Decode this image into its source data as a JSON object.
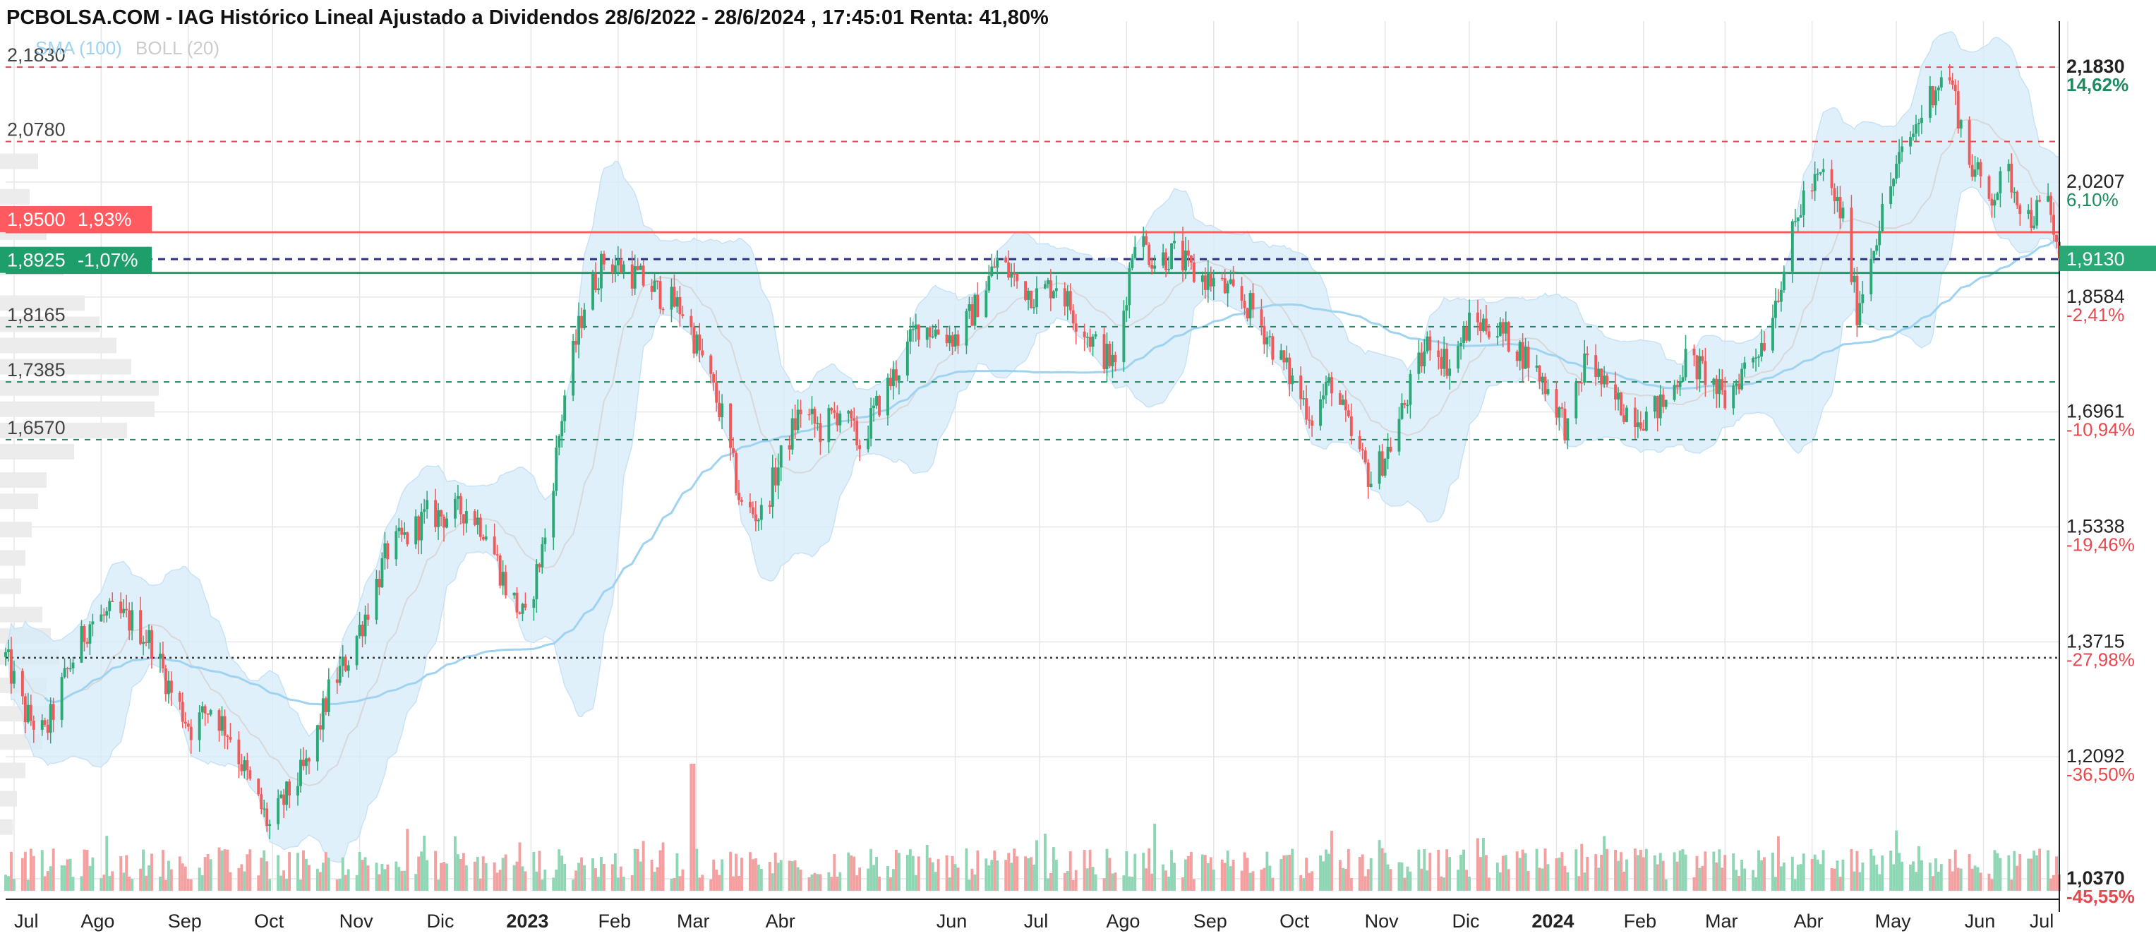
{
  "chart_data": {
    "type": "candlestick",
    "title": "PCBOLSA.COM - IAG Histórico Lineal Ajustado a Dividendos 28/6/2022 - 28/6/2024 , 17:45:01 Renta: 41,80%",
    "legend": [
      {
        "name": "SMA (100)",
        "color": "#9fd3f0"
      },
      {
        "name": "BOLL (20)",
        "color": "#cfcfcf"
      }
    ],
    "x_range": [
      "2022-06-28",
      "2024-06-28"
    ],
    "x_ticks": [
      {
        "label": "Jul",
        "date": "2022-07-01",
        "bold": false
      },
      {
        "label": "Ago",
        "date": "2022-08-01",
        "bold": false
      },
      {
        "label": "Sep",
        "date": "2022-09-01",
        "bold": false
      },
      {
        "label": "Oct",
        "date": "2022-10-01",
        "bold": false
      },
      {
        "label": "Nov",
        "date": "2022-11-01",
        "bold": false
      },
      {
        "label": "Dic",
        "date": "2022-12-01",
        "bold": false
      },
      {
        "label": "2023",
        "date": "2023-01-01",
        "bold": true
      },
      {
        "label": "Feb",
        "date": "2023-02-01",
        "bold": false
      },
      {
        "label": "Mar",
        "date": "2023-03-01",
        "bold": false
      },
      {
        "label": "Abr",
        "date": "2023-04-01",
        "bold": false
      },
      {
        "label": "Jun",
        "date": "2023-06-01",
        "bold": false
      },
      {
        "label": "Jul",
        "date": "2023-07-01",
        "bold": false
      },
      {
        "label": "Ago",
        "date": "2023-08-01",
        "bold": false
      },
      {
        "label": "Sep",
        "date": "2023-09-01",
        "bold": false
      },
      {
        "label": "Oct",
        "date": "2023-10-01",
        "bold": false
      },
      {
        "label": "Nov",
        "date": "2023-11-01",
        "bold": false
      },
      {
        "label": "Dic",
        "date": "2023-12-01",
        "bold": false
      },
      {
        "label": "2024",
        "date": "2024-01-01",
        "bold": true
      },
      {
        "label": "Feb",
        "date": "2024-02-01",
        "bold": false
      },
      {
        "label": "Mar",
        "date": "2024-03-01",
        "bold": false
      },
      {
        "label": "Abr",
        "date": "2024-04-01",
        "bold": false
      },
      {
        "label": "May",
        "date": "2024-05-01",
        "bold": false
      },
      {
        "label": "Jun",
        "date": "2024-06-01",
        "bold": false
      },
      {
        "label": "Jul",
        "date": "2024-07-01",
        "bold": false
      }
    ],
    "y_range": [
      1.02,
      2.24
    ],
    "y_axis": [
      {
        "value": 2.183,
        "label": "2,1830",
        "pct": "14,62%",
        "bold": true,
        "pct_color": "#1e8a5f"
      },
      {
        "value": 2.0207,
        "label": "2,0207",
        "pct": "6,10%",
        "bold": false,
        "pct_color": "#1e8a5f"
      },
      {
        "value": 1.8584,
        "label": "1,8584",
        "pct": "-2,41%",
        "bold": false,
        "pct_color": "#e8484d"
      },
      {
        "value": 1.6961,
        "label": "1,6961",
        "pct": "-10,94%",
        "bold": false,
        "pct_color": "#e8484d"
      },
      {
        "value": 1.5338,
        "label": "1,5338",
        "pct": "-19,46%",
        "bold": false,
        "pct_color": "#e8484d"
      },
      {
        "value": 1.3715,
        "label": "1,3715",
        "pct": "-27,98%",
        "bold": false,
        "pct_color": "#e8484d"
      },
      {
        "value": 1.2092,
        "label": "1,2092",
        "pct": "-36,50%",
        "bold": false,
        "pct_color": "#e8484d"
      },
      {
        "value": 1.037,
        "label": "1,0370",
        "pct": "-45,55%",
        "bold": true,
        "pct_color": "#e8484d"
      }
    ],
    "current_price": {
      "value": 1.913,
      "label": "1,9130"
    },
    "level_lines": [
      {
        "value": 2.183,
        "label": "2,1830",
        "color": "#e8484d"
      },
      {
        "value": 2.078,
        "label": "2,0780",
        "color": "#e8484d"
      },
      {
        "value": 1.8165,
        "label": "1,8165",
        "color": "#1e8a5f"
      },
      {
        "value": 1.7385,
        "label": "1,7385",
        "color": "#1e8a5f"
      },
      {
        "value": 1.657,
        "label": "1,6570",
        "color": "#1e8a5f"
      }
    ],
    "resistance": {
      "value": 1.95,
      "label": "1,9500",
      "pct": "1,93%"
    },
    "support": {
      "value": 1.8925,
      "label": "1,8925",
      "pct": "-1,07%"
    },
    "cost_line": {
      "value": 1.912
    },
    "reference_line": {
      "value": 1.349
    },
    "price_path": [
      [
        "2022-06-28",
        1.35
      ],
      [
        "2022-07-05",
        1.27
      ],
      [
        "2022-07-12",
        1.24
      ],
      [
        "2022-07-20",
        1.33
      ],
      [
        "2022-07-28",
        1.4
      ],
      [
        "2022-08-05",
        1.41
      ],
      [
        "2022-08-12",
        1.4
      ],
      [
        "2022-08-19",
        1.37
      ],
      [
        "2022-08-26",
        1.3
      ],
      [
        "2022-09-02",
        1.25
      ],
      [
        "2022-09-09",
        1.28
      ],
      [
        "2022-09-16",
        1.24
      ],
      [
        "2022-09-23",
        1.17
      ],
      [
        "2022-09-30",
        1.11
      ],
      [
        "2022-10-07",
        1.16
      ],
      [
        "2022-10-14",
        1.2
      ],
      [
        "2022-10-21",
        1.3
      ],
      [
        "2022-10-28",
        1.35
      ],
      [
        "2022-11-04",
        1.42
      ],
      [
        "2022-11-11",
        1.5
      ],
      [
        "2022-11-18",
        1.52
      ],
      [
        "2022-11-25",
        1.55
      ],
      [
        "2022-12-02",
        1.55
      ],
      [
        "2022-12-09",
        1.56
      ],
      [
        "2022-12-16",
        1.53
      ],
      [
        "2022-12-23",
        1.45
      ],
      [
        "2022-12-30",
        1.4
      ],
      [
        "2023-01-06",
        1.52
      ],
      [
        "2023-01-13",
        1.72
      ],
      [
        "2023-01-20",
        1.85
      ],
      [
        "2023-01-27",
        1.91
      ],
      [
        "2023-02-03",
        1.9
      ],
      [
        "2023-02-10",
        1.88
      ],
      [
        "2023-02-17",
        1.86
      ],
      [
        "2023-02-24",
        1.84
      ],
      [
        "2023-03-03",
        1.77
      ],
      [
        "2023-03-10",
        1.69
      ],
      [
        "2023-03-17",
        1.56
      ],
      [
        "2023-03-24",
        1.55
      ],
      [
        "2023-03-31",
        1.63
      ],
      [
        "2023-04-07",
        1.7
      ],
      [
        "2023-04-14",
        1.67
      ],
      [
        "2023-04-21",
        1.7
      ],
      [
        "2023-04-28",
        1.65
      ],
      [
        "2023-05-05",
        1.71
      ],
      [
        "2023-05-12",
        1.76
      ],
      [
        "2023-05-19",
        1.82
      ],
      [
        "2023-05-26",
        1.81
      ],
      [
        "2023-06-02",
        1.8
      ],
      [
        "2023-06-09",
        1.85
      ],
      [
        "2023-06-16",
        1.91
      ],
      [
        "2023-06-23",
        1.88
      ],
      [
        "2023-06-30",
        1.86
      ],
      [
        "2023-07-07",
        1.88
      ],
      [
        "2023-07-14",
        1.83
      ],
      [
        "2023-07-21",
        1.79
      ],
      [
        "2023-07-28",
        1.76
      ],
      [
        "2023-08-04",
        1.95
      ],
      [
        "2023-08-11",
        1.91
      ],
      [
        "2023-08-18",
        1.92
      ],
      [
        "2023-08-25",
        1.89
      ],
      [
        "2023-09-01",
        1.88
      ],
      [
        "2023-09-08",
        1.86
      ],
      [
        "2023-09-15",
        1.84
      ],
      [
        "2023-09-22",
        1.79
      ],
      [
        "2023-09-29",
        1.74
      ],
      [
        "2023-10-06",
        1.69
      ],
      [
        "2023-10-13",
        1.74
      ],
      [
        "2023-10-20",
        1.66
      ],
      [
        "2023-10-27",
        1.6
      ],
      [
        "2023-11-03",
        1.65
      ],
      [
        "2023-11-10",
        1.73
      ],
      [
        "2023-11-17",
        1.8
      ],
      [
        "2023-11-24",
        1.76
      ],
      [
        "2023-12-01",
        1.82
      ],
      [
        "2023-12-08",
        1.82
      ],
      [
        "2023-12-15",
        1.8
      ],
      [
        "2023-12-22",
        1.77
      ],
      [
        "2023-12-29",
        1.73
      ],
      [
        "2024-01-05",
        1.67
      ],
      [
        "2024-01-12",
        1.78
      ],
      [
        "2024-01-19",
        1.72
      ],
      [
        "2024-01-26",
        1.7
      ],
      [
        "2024-02-02",
        1.69
      ],
      [
        "2024-02-09",
        1.71
      ],
      [
        "2024-02-16",
        1.77
      ],
      [
        "2024-02-23",
        1.75
      ],
      [
        "2024-03-01",
        1.71
      ],
      [
        "2024-03-08",
        1.76
      ],
      [
        "2024-03-15",
        1.8
      ],
      [
        "2024-03-22",
        1.9
      ],
      [
        "2024-03-29",
        2.0
      ],
      [
        "2024-04-05",
        2.03
      ],
      [
        "2024-04-12",
        1.97
      ],
      [
        "2024-04-17",
        1.84
      ],
      [
        "2024-04-24",
        1.95
      ],
      [
        "2024-05-01",
        2.04
      ],
      [
        "2024-05-08",
        2.1
      ],
      [
        "2024-05-15",
        2.16
      ],
      [
        "2024-05-20",
        2.17
      ],
      [
        "2024-05-27",
        2.05
      ],
      [
        "2024-06-03",
        2.0
      ],
      [
        "2024-06-10",
        2.03
      ],
      [
        "2024-06-17",
        1.97
      ],
      [
        "2024-06-24",
        1.99
      ],
      [
        "2024-06-28",
        1.913
      ]
    ],
    "volume_spike": {
      "date": "2023-02-27"
    },
    "volume_profile": [
      {
        "price": 2.05,
        "weight": 0.18
      },
      {
        "price": 2.0,
        "weight": 0.14
      },
      {
        "price": 1.95,
        "weight": 0.22
      },
      {
        "price": 1.9,
        "weight": 0.3
      },
      {
        "price": 1.85,
        "weight": 0.4
      },
      {
        "price": 1.82,
        "weight": 0.47
      },
      {
        "price": 1.79,
        "weight": 0.55
      },
      {
        "price": 1.76,
        "weight": 0.62
      },
      {
        "price": 1.73,
        "weight": 0.75
      },
      {
        "price": 1.7,
        "weight": 0.73
      },
      {
        "price": 1.67,
        "weight": 0.6
      },
      {
        "price": 1.64,
        "weight": 0.35
      },
      {
        "price": 1.6,
        "weight": 0.22
      },
      {
        "price": 1.57,
        "weight": 0.18
      },
      {
        "price": 1.53,
        "weight": 0.15
      },
      {
        "price": 1.49,
        "weight": 0.12
      },
      {
        "price": 1.45,
        "weight": 0.1
      },
      {
        "price": 1.41,
        "weight": 0.2
      },
      {
        "price": 1.38,
        "weight": 0.24
      },
      {
        "price": 1.35,
        "weight": 0.28
      },
      {
        "price": 1.31,
        "weight": 0.22
      },
      {
        "price": 1.27,
        "weight": 0.3
      },
      {
        "price": 1.23,
        "weight": 0.2
      },
      {
        "price": 1.19,
        "weight": 0.12
      },
      {
        "price": 1.15,
        "weight": 0.08
      },
      {
        "price": 1.11,
        "weight": 0.06
      }
    ],
    "colors": {
      "up": "#2aa876",
      "down": "#f05a5a",
      "bollinger_fill": "#d8ecfa",
      "sma": "#9fd3f0",
      "grid": "#e6e6e6",
      "resistance": "#ff5a5f",
      "support": "#1e9e6a",
      "cost_line": "#2b2f8c"
    }
  }
}
